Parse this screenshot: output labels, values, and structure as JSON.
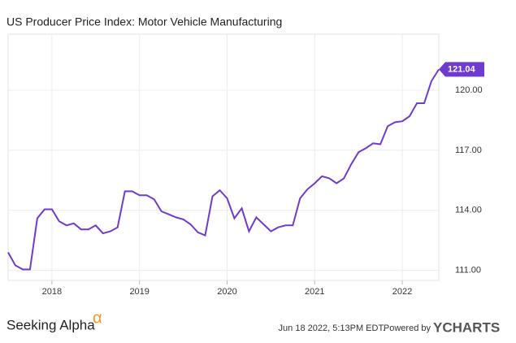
{
  "chart_data": {
    "type": "line",
    "title": "US Producer Price Index: Motor Vehicle Manufacturing",
    "x": [
      2017.5,
      2017.583,
      2017.667,
      2017.75,
      2017.833,
      2017.917,
      2018.0,
      2018.083,
      2018.167,
      2018.25,
      2018.333,
      2018.417,
      2018.5,
      2018.583,
      2018.667,
      2018.75,
      2018.833,
      2018.917,
      2019.0,
      2019.083,
      2019.167,
      2019.25,
      2019.333,
      2019.417,
      2019.5,
      2019.583,
      2019.667,
      2019.75,
      2019.833,
      2019.917,
      2020.0,
      2020.083,
      2020.167,
      2020.25,
      2020.333,
      2020.417,
      2020.5,
      2020.583,
      2020.667,
      2020.75,
      2020.833,
      2020.917,
      2021.0,
      2021.083,
      2021.167,
      2021.25,
      2021.333,
      2021.417,
      2021.5,
      2021.583,
      2021.667,
      2021.75,
      2021.833,
      2021.917,
      2022.0,
      2022.083,
      2022.167,
      2022.25,
      2022.333,
      2022.417
    ],
    "values": [
      111.9,
      111.25,
      111.05,
      111.05,
      113.6,
      114.05,
      114.05,
      113.45,
      113.25,
      113.35,
      113.05,
      113.05,
      113.25,
      112.85,
      112.95,
      113.15,
      114.95,
      114.95,
      114.75,
      114.75,
      114.55,
      113.95,
      113.8,
      113.65,
      113.55,
      113.3,
      112.9,
      112.75,
      114.7,
      115.0,
      114.6,
      113.6,
      114.1,
      112.95,
      113.65,
      113.3,
      112.95,
      113.15,
      113.25,
      113.25,
      114.6,
      115.05,
      115.35,
      115.7,
      115.6,
      115.35,
      115.6,
      116.3,
      116.9,
      117.1,
      117.35,
      117.3,
      118.2,
      118.4,
      118.45,
      118.7,
      119.35,
      119.35,
      120.45,
      121.04
    ],
    "color": "#6f3bcc",
    "xlim": [
      2017.5,
      2022.417
    ],
    "xticks": [
      2018,
      2019,
      2020,
      2021,
      2022
    ],
    "ylim": [
      110.5,
      122.8
    ],
    "yticks": [
      {
        "value": 111,
        "label": "111.00"
      },
      {
        "value": 114,
        "label": "114.00"
      },
      {
        "value": 117,
        "label": "117.00"
      },
      {
        "value": 120,
        "label": "120.00"
      }
    ],
    "grid": true,
    "footer": {
      "brand": "Seeking Alpha",
      "brand_mark": "α",
      "timestamp": "Jun 18 2022, 5:13PM EDT.",
      "powered_by": "Powered by",
      "provider": "YCHARTS"
    }
  }
}
